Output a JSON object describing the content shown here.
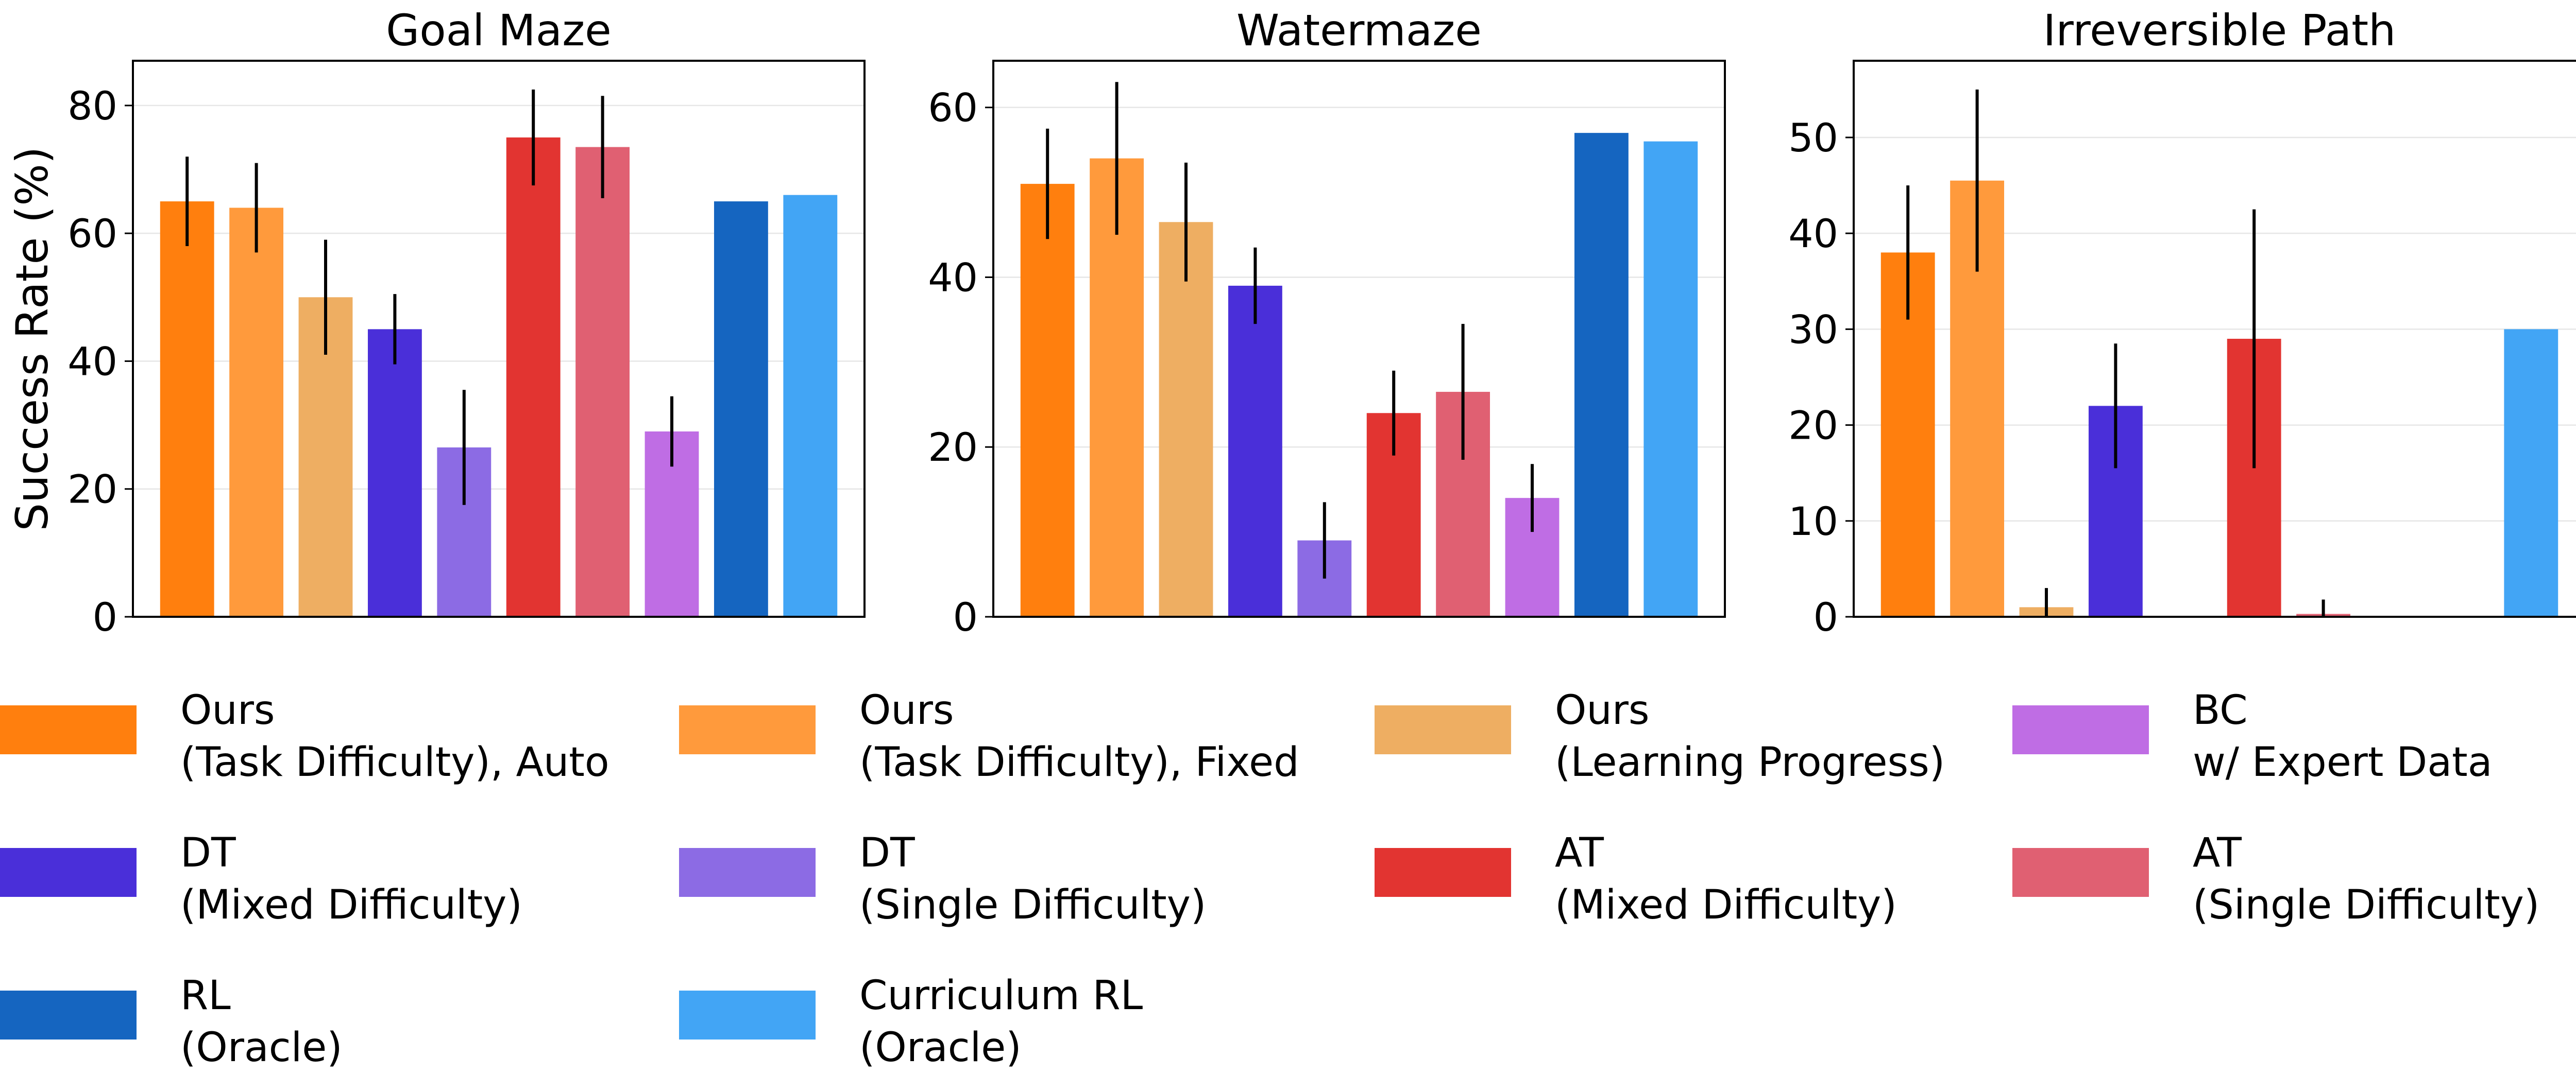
{
  "chart_data": [
    {
      "type": "bar",
      "title": "Goal Maze",
      "ylabel": "Success Rate (%)",
      "xlabel": "",
      "ylim": [
        0,
        87
      ],
      "yticks": [
        0,
        20,
        40,
        60,
        80
      ],
      "grid": true,
      "series": [
        {
          "name": "Ours (Task Difficulty), Auto",
          "value": 65.0,
          "error": 7.0
        },
        {
          "name": "Ours (Task Difficulty), Fixed",
          "value": 64.0,
          "error": 7.0
        },
        {
          "name": "Ours (Learning Progress)",
          "value": 50.0,
          "error": 9.0
        },
        {
          "name": "DT (Mixed Difficulty)",
          "value": 45.0,
          "error": 5.5
        },
        {
          "name": "DT (Single Difficulty)",
          "value": 26.5,
          "error": 9.0
        },
        {
          "name": "AT (Mixed Difficulty)",
          "value": 75.0,
          "error": 7.5
        },
        {
          "name": "AT (Single Difficulty)",
          "value": 73.5,
          "error": 8.0
        },
        {
          "name": "BC w/ Expert Data",
          "value": 29.0,
          "error": 5.5
        },
        {
          "name": "RL (Oracle)",
          "value": 65.0,
          "error": null
        },
        {
          "name": "Curriculum RL (Oracle)",
          "value": 66.0,
          "error": null
        }
      ]
    },
    {
      "type": "bar",
      "title": "Watermaze",
      "ylabel": "",
      "xlabel": "",
      "ylim": [
        0,
        65.5
      ],
      "yticks": [
        0,
        20,
        40,
        60
      ],
      "grid": true,
      "series": [
        {
          "name": "Ours (Task Difficulty), Auto",
          "value": 51.0,
          "error": 6.5
        },
        {
          "name": "Ours (Task Difficulty), Fixed",
          "value": 54.0,
          "error": 9.0
        },
        {
          "name": "Ours (Learning Progress)",
          "value": 46.5,
          "error": 7.0
        },
        {
          "name": "DT (Mixed Difficulty)",
          "value": 39.0,
          "error": 4.5
        },
        {
          "name": "DT (Single Difficulty)",
          "value": 9.0,
          "error": 4.5
        },
        {
          "name": "AT (Mixed Difficulty)",
          "value": 24.0,
          "error": 5.0
        },
        {
          "name": "AT (Single Difficulty)",
          "value": 26.5,
          "error": 8.0
        },
        {
          "name": "BC w/ Expert Data",
          "value": 14.0,
          "error": 4.0
        },
        {
          "name": "RL (Oracle)",
          "value": 57.0,
          "error": null
        },
        {
          "name": "Curriculum RL (Oracle)",
          "value": 56.0,
          "error": null
        }
      ]
    },
    {
      "type": "bar",
      "title": "Irreversible Path",
      "ylabel": "",
      "xlabel": "",
      "ylim": [
        0,
        58
      ],
      "yticks": [
        0,
        10,
        20,
        30,
        40,
        50
      ],
      "grid": true,
      "series": [
        {
          "name": "Ours (Task Difficulty), Auto",
          "value": 38.0,
          "error": 7.0
        },
        {
          "name": "Ours (Task Difficulty), Fixed",
          "value": 45.5,
          "error": 9.5
        },
        {
          "name": "Ours (Learning Progress)",
          "value": 1.0,
          "error": 2.0
        },
        {
          "name": "DT (Mixed Difficulty)",
          "value": 22.0,
          "error": 6.5
        },
        {
          "name": "DT (Single Difficulty)",
          "value": 0.0,
          "error": null
        },
        {
          "name": "AT (Mixed Difficulty)",
          "value": 29.0,
          "error": 13.5
        },
        {
          "name": "AT (Single Difficulty)",
          "value": 0.3,
          "error": 1.5
        },
        {
          "name": "BC w/ Expert Data",
          "value": 0.0,
          "error": null
        },
        {
          "name": "RL (Oracle)",
          "value": 0.0,
          "error": null
        },
        {
          "name": "Curriculum RL (Oracle)",
          "value": 30.0,
          "error": null
        }
      ]
    }
  ],
  "colors": [
    "#ff7f0e",
    "#ff9a3c",
    "#eeae62",
    "#4a2fd9",
    "#8c6be4",
    "#e23431",
    "#e06072",
    "#bf6de4",
    "#1565c0",
    "#42a5f5"
  ],
  "legend": {
    "placement": "bottom",
    "items": [
      {
        "line1": "Ours",
        "line2": "(Task Difficulty), Auto",
        "color": "#ff7f0e"
      },
      {
        "line1": "Ours",
        "line2": "(Task Difficulty), Fixed",
        "color": "#ff9a3c"
      },
      {
        "line1": "Ours",
        "line2": "(Learning Progress)",
        "color": "#eeae62"
      },
      {
        "line1": "BC",
        "line2": "w/ Expert Data",
        "color": "#bf6de4"
      },
      {
        "line1": "DT",
        "line2": "(Mixed Difficulty)",
        "color": "#4a2fd9"
      },
      {
        "line1": "DT",
        "line2": "(Single Difficulty)",
        "color": "#8c6be4"
      },
      {
        "line1": "AT",
        "line2": "(Mixed Difficulty)",
        "color": "#e23431"
      },
      {
        "line1": "AT",
        "line2": "(Single Difficulty)",
        "color": "#e06072"
      },
      {
        "line1": "RL",
        "line2": "(Oracle)",
        "color": "#1565c0"
      },
      {
        "line1": "Curriculum RL",
        "line2": "(Oracle)",
        "color": "#42a5f5"
      }
    ]
  }
}
